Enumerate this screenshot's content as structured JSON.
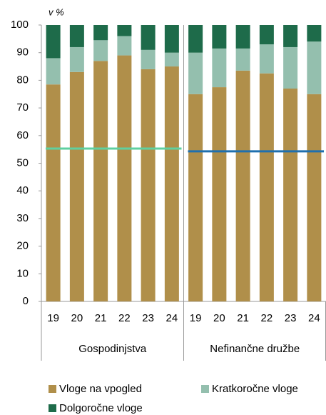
{
  "chart_data": {
    "type": "stacked_bar",
    "y_unit_label": "v %",
    "categories": [
      "19",
      "20",
      "21",
      "22",
      "23",
      "24",
      "19",
      "20",
      "21",
      "22",
      "23",
      "24"
    ],
    "groups": [
      "Gospodinjstva",
      "Nefinančne družbe"
    ],
    "series": [
      {
        "name": "Vloge na vpogled",
        "color": "#b08f4a",
        "values": [
          78.5,
          83,
          87,
          89,
          84,
          85,
          75,
          77.5,
          83.5,
          82.5,
          77,
          75
        ]
      },
      {
        "name": "Kratkoročne vloge",
        "color": "#94bfae",
        "values": [
          9.5,
          9,
          7.5,
          7,
          7,
          5,
          15,
          14,
          8,
          10.5,
          15,
          19
        ]
      },
      {
        "name": "Dolgoročne vloge",
        "color": "#1e6b4a",
        "values": [
          12,
          8,
          5.5,
          4,
          9,
          10,
          10,
          8.5,
          8.5,
          7,
          8,
          6
        ]
      }
    ],
    "group_lines": [
      55.3,
      54.3
    ],
    "group_line_colors": [
      "#5fd0a0",
      "#1f6fae"
    ],
    "ylim": [
      0,
      100
    ],
    "yticks": [
      0,
      10,
      20,
      30,
      40,
      50,
      60,
      70,
      80,
      90,
      100
    ]
  }
}
